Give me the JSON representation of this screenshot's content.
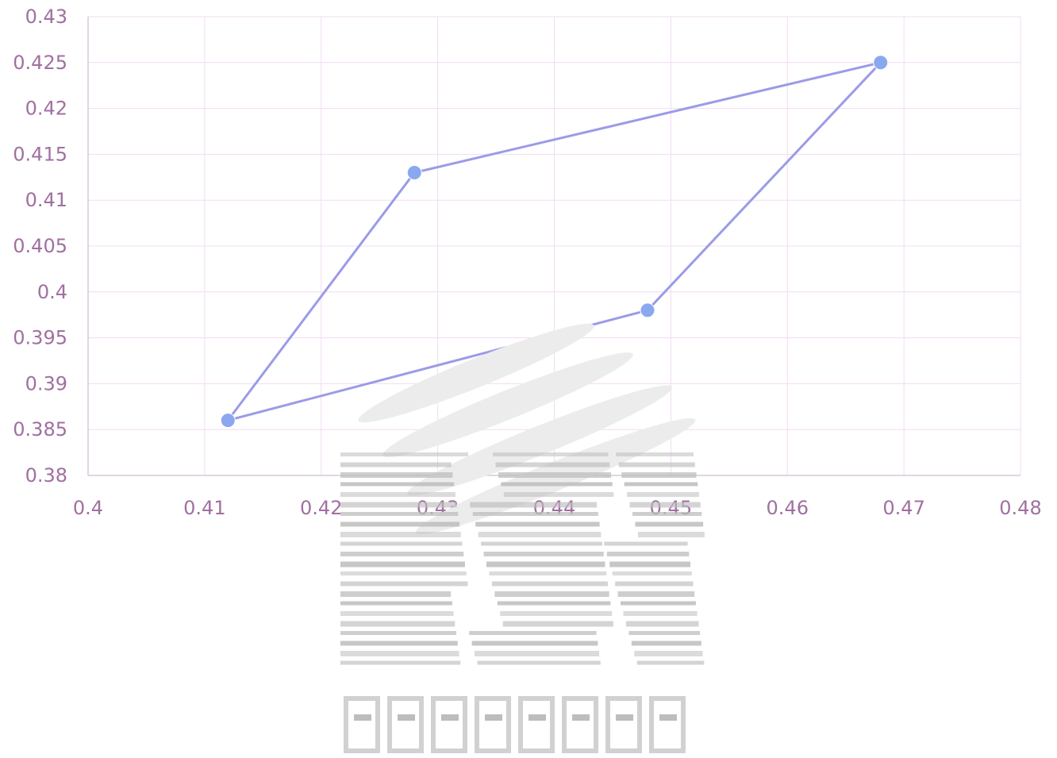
{
  "chart_data": {
    "type": "scatter",
    "title": "",
    "xlabel": "",
    "ylabel": "",
    "xlim": [
      0.4,
      0.48
    ],
    "ylim": [
      0.38,
      0.43
    ],
    "x_ticks": [
      "0.4",
      "0.41",
      "0.42",
      "0.43",
      "0.44",
      "0.45",
      "0.46",
      "0.47",
      "0.48"
    ],
    "y_ticks": [
      "0.38",
      "0.385",
      "0.39",
      "0.395",
      "0.4",
      "0.405",
      "0.41",
      "0.415",
      "0.42",
      "0.425",
      "0.43"
    ],
    "grid": true,
    "legend": "none",
    "series": [
      {
        "connected": true,
        "closed": true,
        "color": "#9b9be8",
        "marker_color": "#8aa8f0",
        "points": [
          {
            "x": 0.412,
            "y": 0.386
          },
          {
            "x": 0.428,
            "y": 0.413
          },
          {
            "x": 0.468,
            "y": 0.425
          },
          {
            "x": 0.448,
            "y": 0.398
          }
        ]
      }
    ]
  },
  "watermark": {
    "present": true,
    "color": "#bdbdbd"
  }
}
